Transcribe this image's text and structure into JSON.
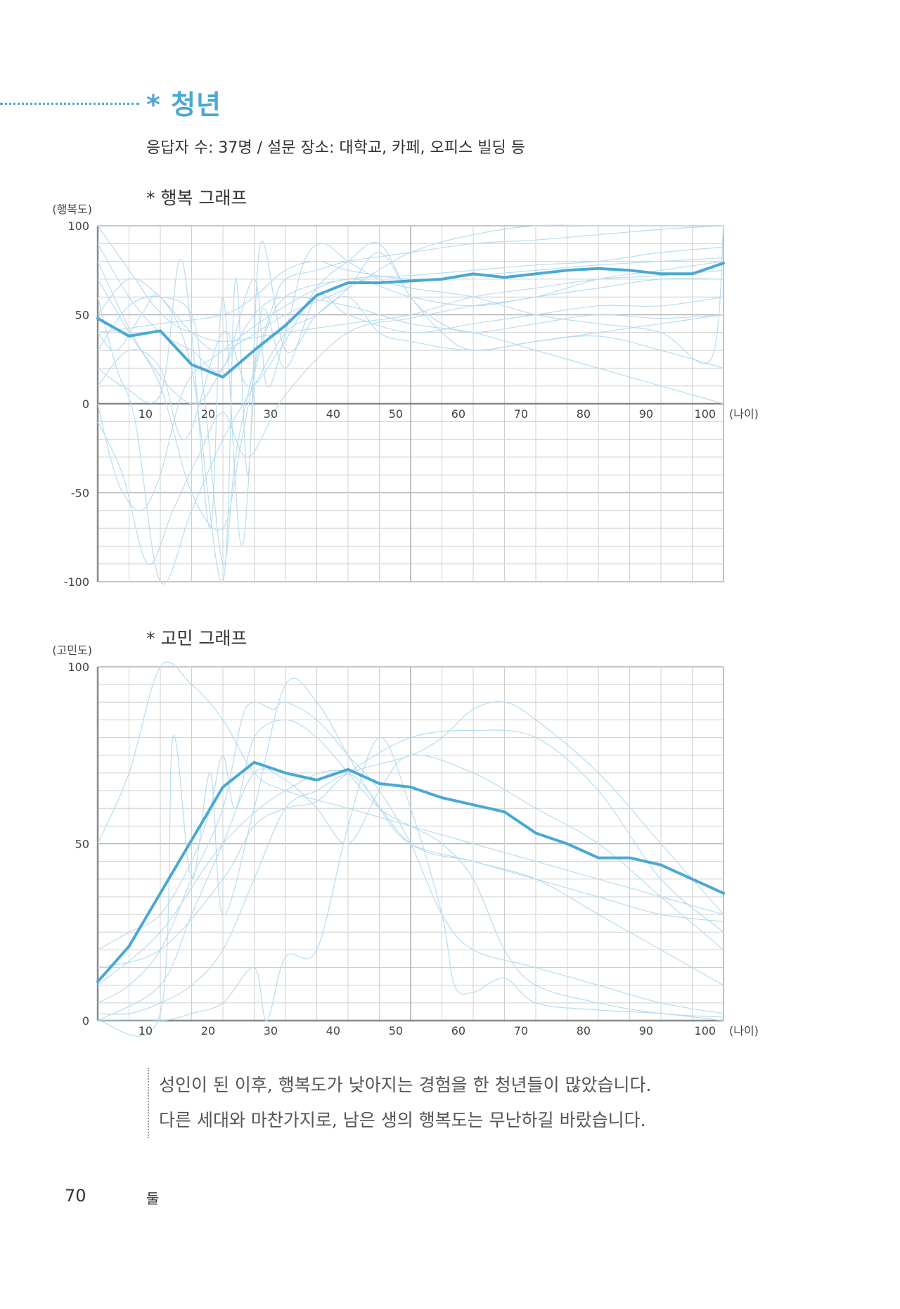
{
  "section": {
    "title": "* 청년",
    "respondents": "응답자 수: 37명 / 설문 장소: 대학교, 카페, 오피스 빌딩 등"
  },
  "chart_data": [
    {
      "type": "line",
      "title": "* 행복 그래프",
      "ylabel": "(행복도)",
      "xlabel": "(나이)",
      "xlim": [
        1,
        101
      ],
      "ylim": [
        -100,
        100
      ],
      "xticks": [
        10,
        20,
        30,
        40,
        50,
        60,
        70,
        80,
        90,
        100
      ],
      "yticks": [
        100,
        50,
        0,
        -50,
        -100
      ],
      "grid": true,
      "series": [
        {
          "role": "average",
          "x": [
            1,
            6,
            11,
            16,
            21,
            26,
            31,
            36,
            41,
            46,
            51,
            56,
            61,
            66,
            71,
            76,
            81,
            86,
            91,
            96,
            101
          ],
          "y": [
            48,
            38,
            41,
            22,
            15,
            30,
            44,
            61,
            68,
            68,
            69,
            70,
            73,
            71,
            73,
            75,
            76,
            75,
            73,
            73,
            79
          ]
        }
      ],
      "individual_lines": [
        {
          "x": [
            1,
            4,
            7,
            10,
            13,
            16,
            21,
            31,
            41,
            51,
            61,
            71,
            81,
            91,
            101
          ],
          "y": [
            100,
            85,
            70,
            55,
            45,
            40,
            35,
            40,
            45,
            50,
            60,
            65,
            70,
            72,
            75
          ]
        },
        {
          "x": [
            1,
            3,
            5,
            8,
            11,
            15,
            21,
            31,
            41,
            51,
            61,
            71,
            81,
            91,
            101
          ],
          "y": [
            0,
            -30,
            -50,
            -60,
            -40,
            10,
            30,
            55,
            70,
            60,
            55,
            60,
            65,
            70,
            70
          ]
        },
        {
          "x": [
            1,
            4,
            7,
            11,
            16,
            21,
            26,
            31,
            36,
            41,
            46,
            51,
            56,
            61,
            71,
            81,
            91,
            101
          ],
          "y": [
            60,
            20,
            -10,
            -100,
            -60,
            -20,
            10,
            40,
            50,
            65,
            85,
            60,
            40,
            30,
            35,
            38,
            30,
            20
          ]
        },
        {
          "x": [
            1,
            5,
            9,
            13,
            17,
            21,
            25,
            31,
            41,
            51,
            61,
            71,
            81,
            91,
            101
          ],
          "y": [
            -10,
            -40,
            -90,
            -60,
            -30,
            -5,
            -30,
            5,
            40,
            48,
            55,
            60,
            70,
            75,
            80
          ]
        },
        {
          "x": [
            1,
            6,
            11,
            16,
            21,
            24,
            27,
            31,
            41,
            51,
            61,
            71,
            81,
            91,
            101
          ],
          "y": [
            70,
            40,
            10,
            -50,
            -70,
            -20,
            30,
            60,
            70,
            72,
            75,
            78,
            80,
            85,
            88
          ]
        },
        {
          "x": [
            1,
            6,
            11,
            16,
            18,
            21,
            23,
            26,
            29,
            31,
            36,
            41,
            51,
            61,
            71,
            81,
            91,
            101
          ],
          "y": [
            30,
            55,
            60,
            50,
            5,
            -90,
            -30,
            20,
            55,
            70,
            75,
            80,
            85,
            90,
            92,
            95,
            98,
            100
          ]
        },
        {
          "x": [
            1,
            5,
            11,
            14,
            16,
            19,
            21,
            24,
            27,
            31,
            36,
            41,
            51,
            61,
            71,
            81,
            91,
            101
          ],
          "y": [
            20,
            10,
            5,
            80,
            40,
            -70,
            60,
            -80,
            50,
            20,
            60,
            50,
            40,
            45,
            50,
            55,
            55,
            60
          ]
        },
        {
          "x": [
            1,
            4,
            8,
            11,
            16,
            21,
            23,
            25,
            27,
            31,
            36,
            41,
            46,
            51,
            61,
            71,
            81,
            91,
            101
          ],
          "y": [
            40,
            30,
            50,
            60,
            20,
            -100,
            70,
            -40,
            90,
            30,
            50,
            60,
            40,
            35,
            30,
            35,
            40,
            45,
            50
          ]
        },
        {
          "x": [
            1,
            6,
            11,
            16,
            21,
            26,
            28,
            31,
            34,
            37,
            41,
            46,
            51,
            61,
            71,
            81,
            91,
            99,
            101
          ],
          "y": [
            90,
            60,
            40,
            30,
            20,
            70,
            10,
            40,
            80,
            90,
            80,
            70,
            65,
            60,
            50,
            45,
            40,
            25,
            100
          ]
        },
        {
          "x": [
            1,
            6,
            11,
            15,
            21,
            25,
            30,
            36,
            41,
            46,
            51,
            56,
            61,
            71,
            81,
            91,
            101
          ],
          "y": [
            10,
            30,
            20,
            -20,
            40,
            10,
            30,
            65,
            80,
            90,
            60,
            45,
            40,
            45,
            50,
            48,
            50
          ]
        },
        {
          "x": [
            1,
            11,
            21,
            26,
            31,
            36,
            41,
            51,
            61,
            71,
            81,
            91,
            101
          ],
          "y": [
            40,
            45,
            50,
            60,
            75,
            80,
            75,
            70,
            72,
            75,
            78,
            80,
            82
          ]
        },
        {
          "x": [
            1,
            8,
            16,
            21,
            26,
            31,
            41,
            51,
            61,
            71,
            81,
            91,
            101
          ],
          "y": [
            80,
            30,
            0,
            20,
            50,
            60,
            55,
            45,
            40,
            30,
            20,
            10,
            0
          ]
        },
        {
          "x": [
            1,
            6,
            11,
            16,
            21,
            31,
            41,
            51,
            61,
            71,
            81,
            91,
            101
          ],
          "y": [
            50,
            70,
            60,
            40,
            30,
            50,
            65,
            85,
            95,
            100,
            100,
            100,
            100
          ]
        }
      ]
    },
    {
      "type": "line",
      "title": "* 고민 그래프",
      "ylabel": "(고민도)",
      "xlabel": "(나이)",
      "xlim": [
        1,
        101
      ],
      "ylim": [
        0,
        100
      ],
      "xticks": [
        10,
        20,
        30,
        40,
        50,
        60,
        70,
        80,
        90,
        100
      ],
      "yticks": [
        100,
        50,
        0
      ],
      "grid": true,
      "series": [
        {
          "role": "average",
          "x": [
            1,
            6,
            11,
            16,
            21,
            26,
            31,
            36,
            41,
            46,
            51,
            56,
            61,
            66,
            71,
            76,
            81,
            86,
            91,
            96,
            101
          ],
          "y": [
            11,
            21,
            36,
            51,
            66,
            73,
            70,
            68,
            71,
            67,
            66,
            63,
            61,
            59,
            53,
            50,
            46,
            46,
            44,
            40,
            36
          ]
        }
      ],
      "individual_lines": [
        {
          "x": [
            1,
            6,
            11,
            16,
            21,
            26,
            31,
            41,
            51,
            61,
            71,
            81,
            91,
            101
          ],
          "y": [
            50,
            70,
            100,
            95,
            85,
            70,
            65,
            60,
            55,
            50,
            45,
            40,
            35,
            30
          ]
        },
        {
          "x": [
            1,
            6,
            11,
            16,
            21,
            24,
            26,
            29,
            31,
            36,
            41,
            46,
            51,
            56,
            61,
            71,
            81,
            91,
            101
          ],
          "y": [
            5,
            10,
            20,
            40,
            60,
            85,
            90,
            88,
            90,
            85,
            75,
            65,
            50,
            30,
            20,
            15,
            10,
            5,
            2
          ]
        },
        {
          "x": [
            1,
            11,
            13,
            16,
            19,
            21,
            26,
            31,
            36,
            41,
            46,
            51,
            61,
            71,
            81,
            91,
            101
          ],
          "y": [
            0,
            2,
            80,
            40,
            70,
            30,
            60,
            95,
            90,
            75,
            60,
            50,
            45,
            40,
            30,
            20,
            10
          ]
        },
        {
          "x": [
            1,
            11,
            16,
            21,
            26,
            28,
            31,
            36,
            41,
            46,
            51,
            56,
            58,
            61,
            66,
            71,
            81,
            91,
            101
          ],
          "y": [
            0,
            0,
            2,
            5,
            15,
            0,
            18,
            20,
            55,
            80,
            60,
            30,
            10,
            8,
            12,
            5,
            3,
            2,
            0
          ]
        },
        {
          "x": [
            1,
            6,
            11,
            16,
            19,
            21,
            23,
            26,
            31,
            36,
            41,
            46,
            51,
            56,
            61,
            66,
            71,
            81,
            91,
            101
          ],
          "y": [
            20,
            25,
            30,
            45,
            60,
            75,
            60,
            80,
            85,
            80,
            70,
            60,
            55,
            50,
            40,
            20,
            10,
            5,
            2,
            1
          ]
        },
        {
          "x": [
            1,
            6,
            11,
            16,
            21,
            26,
            31,
            36,
            41,
            51,
            56,
            61,
            66,
            71,
            81,
            91,
            101
          ],
          "y": [
            2,
            2,
            5,
            10,
            20,
            40,
            60,
            65,
            70,
            75,
            80,
            88,
            90,
            85,
            70,
            50,
            30
          ]
        },
        {
          "x": [
            1,
            11,
            21,
            26,
            31,
            36,
            41,
            51,
            61,
            71,
            81,
            91,
            101
          ],
          "y": [
            15,
            20,
            40,
            55,
            60,
            62,
            70,
            80,
            82,
            80,
            65,
            40,
            25
          ]
        },
        {
          "x": [
            1,
            11,
            16,
            21,
            26,
            31,
            36,
            41,
            46,
            51,
            61,
            71,
            81,
            91,
            101
          ],
          "y": [
            0,
            10,
            30,
            50,
            70,
            68,
            60,
            50,
            65,
            75,
            70,
            60,
            50,
            35,
            20
          ]
        },
        {
          "x": [
            1,
            11,
            21,
            31,
            41,
            51,
            61,
            71,
            81,
            91,
            101
          ],
          "y": [
            10,
            25,
            50,
            65,
            70,
            50,
            45,
            40,
            35,
            30,
            28
          ]
        }
      ]
    }
  ],
  "quote": {
    "line1": "성인이 된 이후, 행복도가 낮아지는 경험을 한 청년들이 많았습니다.",
    "line2": "다른 세대와 마찬가지로, 남은 생의 행복도는 무난하길 바랐습니다."
  },
  "footer": {
    "page_number": "70",
    "chapter": "둘"
  },
  "colors": {
    "accent": "#4aa8d4",
    "faint_line": "#b8dcf0",
    "grid": "#cfcfcf",
    "major_grid": "#b3b3b3"
  }
}
